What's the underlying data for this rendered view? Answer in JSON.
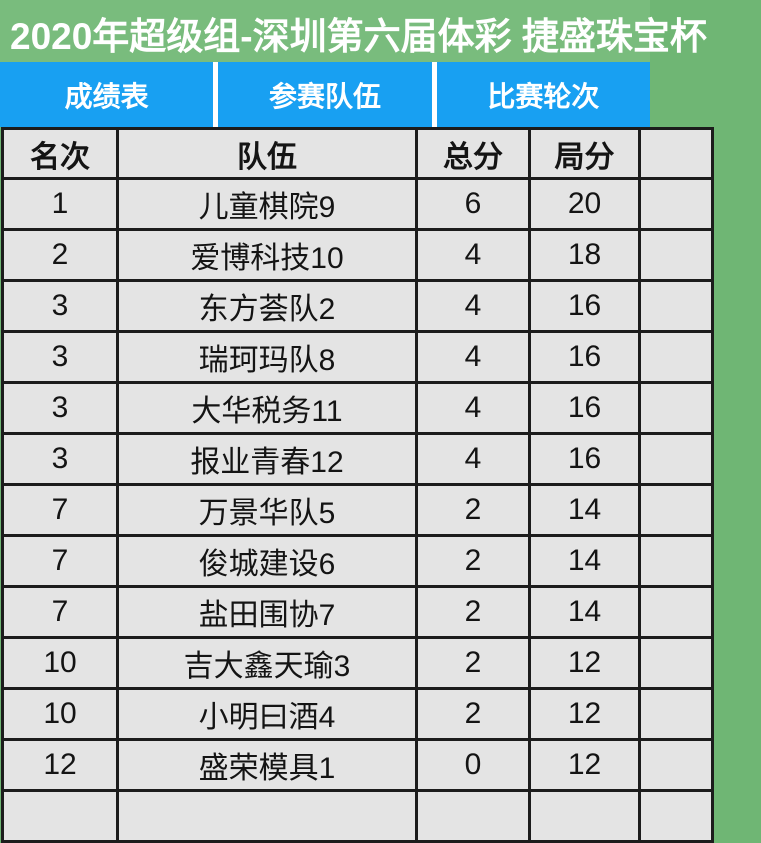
{
  "header": {
    "title": "2020年超级组-深圳第六届体彩 捷盛珠宝杯"
  },
  "tabs": [
    {
      "label": "成绩表"
    },
    {
      "label": "参赛队伍"
    },
    {
      "label": "比赛轮次"
    }
  ],
  "table": {
    "columns": [
      "名次",
      "队伍",
      "总分",
      "局分"
    ],
    "rows": [
      {
        "rank": "1",
        "team": "儿童棋院9",
        "total": "6",
        "game": "20"
      },
      {
        "rank": "2",
        "team": "爱博科技10",
        "total": "4",
        "game": "18"
      },
      {
        "rank": "3",
        "team": "东方荟队2",
        "total": "4",
        "game": "16"
      },
      {
        "rank": "3",
        "team": "瑞珂玛队8",
        "total": "4",
        "game": "16"
      },
      {
        "rank": "3",
        "team": "大华税务11",
        "total": "4",
        "game": "16"
      },
      {
        "rank": "3",
        "team": "报业青春12",
        "total": "4",
        "game": "16"
      },
      {
        "rank": "7",
        "team": "万景华队5",
        "total": "2",
        "game": "14"
      },
      {
        "rank": "7",
        "team": "俊城建设6",
        "total": "2",
        "game": "14"
      },
      {
        "rank": "7",
        "team": "盐田围协7",
        "total": "2",
        "game": "14"
      },
      {
        "rank": "10",
        "team": "吉大鑫天瑜3",
        "total": "2",
        "game": "12"
      },
      {
        "rank": "10",
        "team": "小明曰酒4",
        "total": "2",
        "game": "12"
      },
      {
        "rank": "12",
        "team": "盛荣模具1",
        "total": "0",
        "game": "12"
      }
    ]
  },
  "colors": {
    "banner_green": "#79bc7d",
    "background_green": "#6fb674",
    "tab_blue": "#18a0f2",
    "cell_gray": "#e4e4e4",
    "grid_black": "#1c1c1c",
    "text_white": "#ffffff",
    "text_dark": "#141414"
  }
}
